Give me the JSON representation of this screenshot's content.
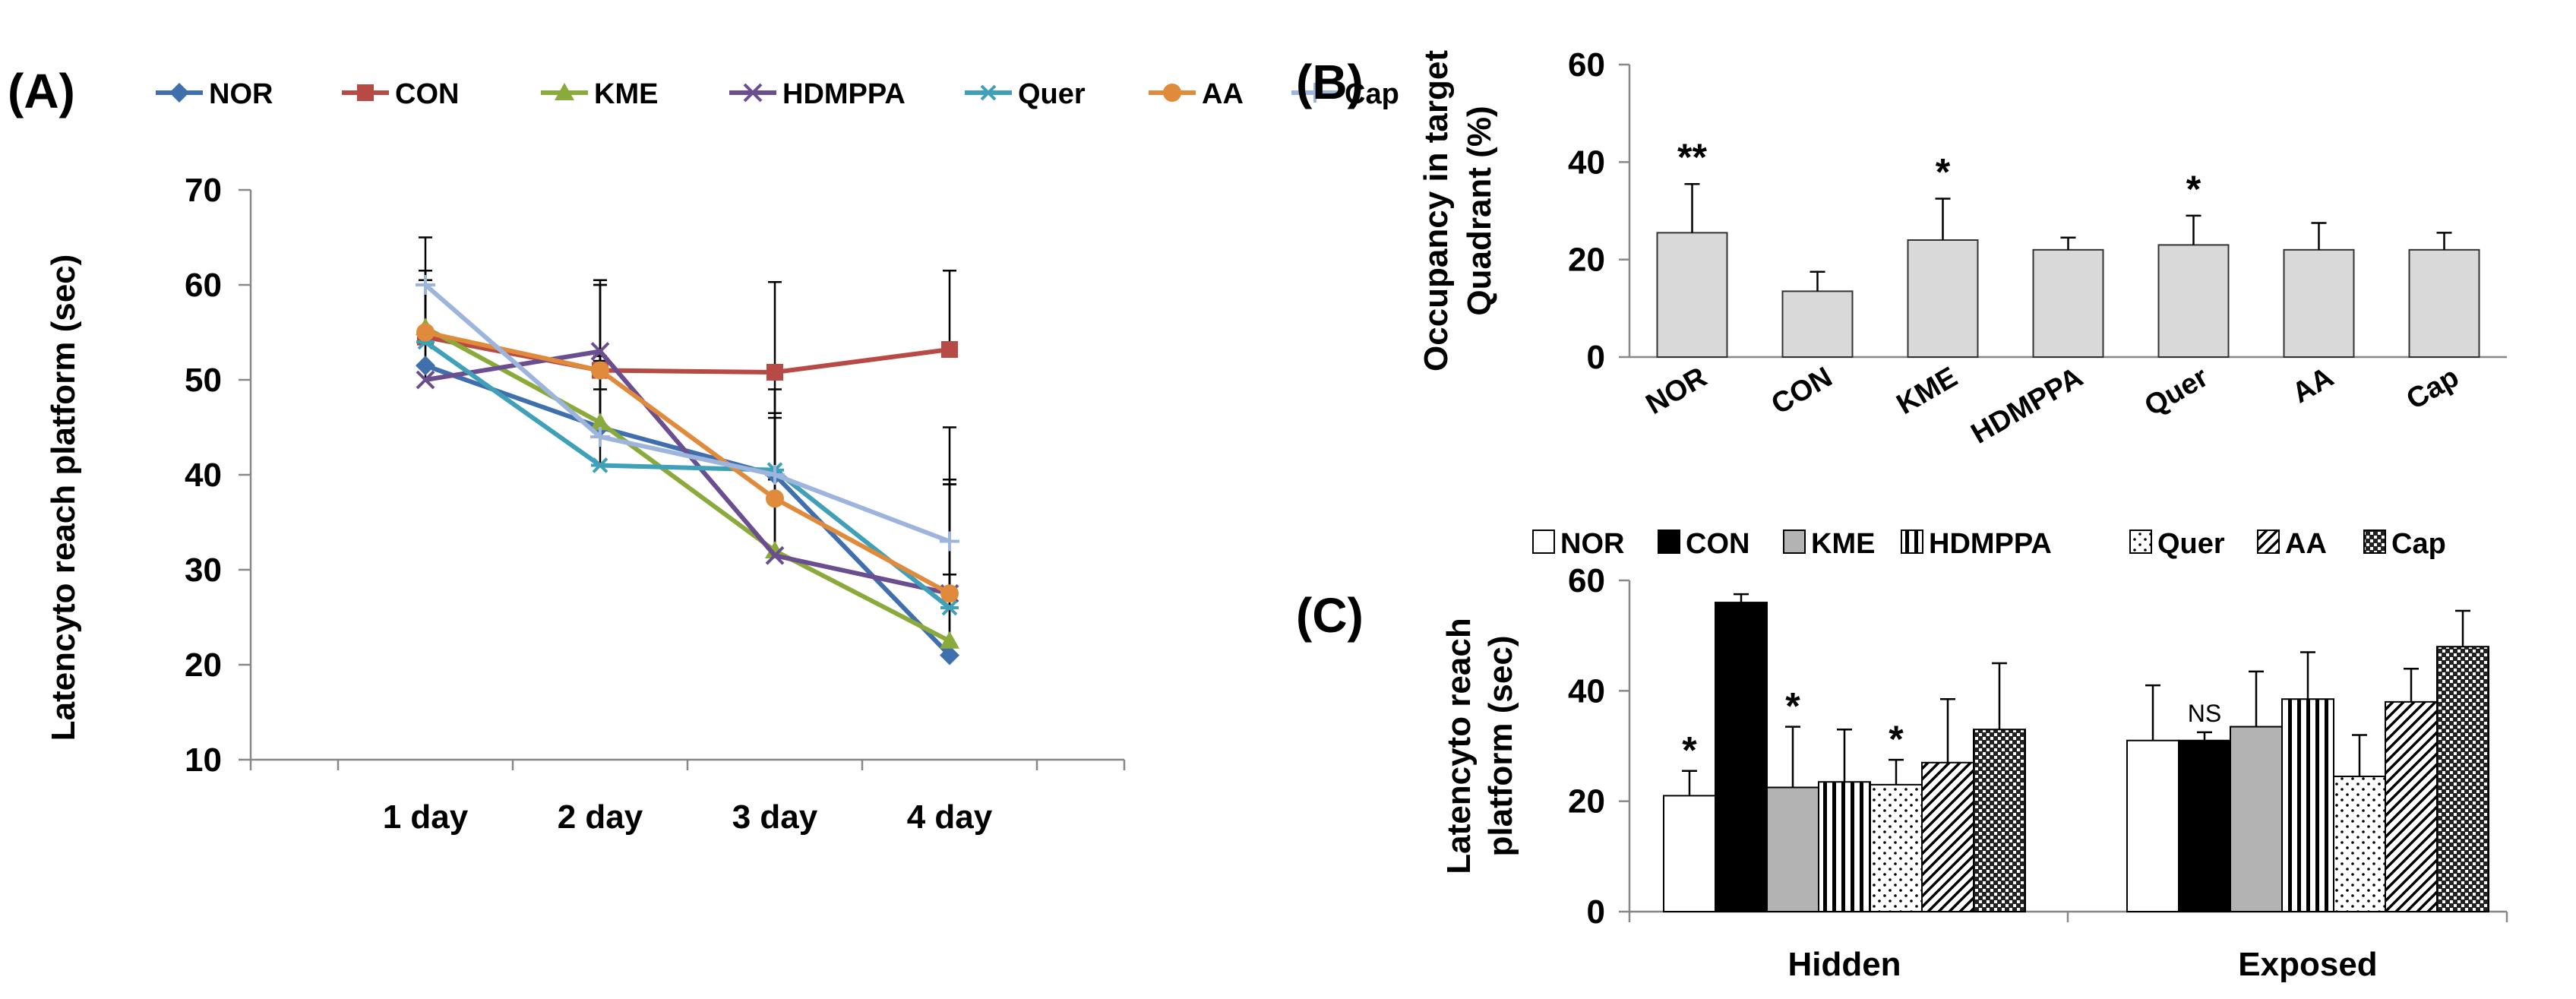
{
  "chart_data": [
    {
      "panel": "(A)",
      "type": "line",
      "categories": [
        "1 day",
        "2 day",
        "3 day",
        "4 day"
      ],
      "ylabel": "Latencyto reach platform (sec)",
      "xlabel": "",
      "ylim": [
        10,
        70
      ],
      "yticks": [
        10,
        20,
        30,
        40,
        50,
        60,
        70
      ],
      "series": [
        {
          "name": "NOR",
          "color": "#3f6fad",
          "marker": "diamond",
          "values": [
            51.5,
            45,
            40,
            21
          ],
          "errors": [
            4,
            6,
            6,
            6
          ]
        },
        {
          "name": "CON",
          "color": "#b84a45",
          "marker": "square",
          "values": [
            54.5,
            51,
            50.8,
            53.2
          ],
          "errors": [
            6,
            9,
            9.5,
            8.3
          ]
        },
        {
          "name": "KME",
          "color": "#8aaa3c",
          "marker": "triangle",
          "values": [
            55.5,
            45.5,
            32,
            22.5
          ],
          "errors": [
            6,
            7,
            8,
            7
          ]
        },
        {
          "name": "HDMPPA",
          "color": "#6b4e8f",
          "marker": "x",
          "values": [
            50,
            53,
            31.5,
            27.5
          ],
          "errors": [
            5,
            7.5,
            8,
            12
          ]
        },
        {
          "name": "Quer",
          "color": "#3fa0b8",
          "marker": "asterisk",
          "values": [
            54,
            41,
            40.5,
            26
          ],
          "errors": [
            6,
            8,
            10,
            13
          ]
        },
        {
          "name": "AA",
          "color": "#e08a3c",
          "marker": "circle",
          "values": [
            55,
            51,
            37.5,
            27.5
          ],
          "errors": [
            6.5,
            9,
            9,
            11.5
          ]
        },
        {
          "name": "Cap",
          "color": "#9db5dc",
          "marker": "plus",
          "values": [
            60,
            44,
            40,
            33
          ],
          "errors": [
            5,
            8,
            9,
            12
          ]
        }
      ]
    },
    {
      "panel": "(B)",
      "type": "bar",
      "categories": [
        "NOR",
        "CON",
        "KME",
        "HDMPPA",
        "Quer",
        "AA",
        "Cap"
      ],
      "values": [
        25.5,
        13.5,
        24,
        22,
        23,
        22,
        22
      ],
      "errors": [
        10,
        4,
        8.5,
        2.5,
        6,
        5.5,
        3.5
      ],
      "significance": [
        "**",
        "",
        "*",
        "",
        "*",
        "",
        ""
      ],
      "ylabel_line1": "Occupancy in target",
      "ylabel_line2": "Quadrant (%)",
      "xlabel": "",
      "ylim": [
        0,
        60
      ],
      "yticks": [
        0,
        20,
        40,
        60
      ],
      "bar_color": "#d9d9d9"
    },
    {
      "panel": "(C)",
      "type": "bar",
      "categories": [
        "Hidden",
        "Exposed"
      ],
      "ylabel_line1": "Latencyto reach",
      "ylabel_line2": "platform (sec)",
      "xlabel": "",
      "ylim": [
        0,
        60
      ],
      "yticks": [
        0,
        20,
        40,
        60
      ],
      "ns_label": "NS",
      "series": [
        {
          "name": "NOR",
          "pattern": "white",
          "values": [
            21,
            31
          ],
          "errors": [
            4.5,
            10
          ],
          "significance": [
            "*",
            ""
          ]
        },
        {
          "name": "CON",
          "pattern": "black",
          "values": [
            56,
            31
          ],
          "errors": [
            1.5,
            1.5
          ],
          "significance": [
            "",
            "NS"
          ]
        },
        {
          "name": "KME",
          "pattern": "gray",
          "values": [
            22.5,
            33.5
          ],
          "errors": [
            11,
            10
          ],
          "significance": [
            "*",
            ""
          ]
        },
        {
          "name": "HDMPPA",
          "pattern": "vlines",
          "values": [
            23.5,
            38.5
          ],
          "errors": [
            9.5,
            8.5
          ],
          "significance": [
            "",
            ""
          ]
        },
        {
          "name": "Quer",
          "pattern": "dots",
          "values": [
            23,
            24.5
          ],
          "errors": [
            4.5,
            7.5
          ],
          "significance": [
            "*",
            ""
          ]
        },
        {
          "name": "AA",
          "pattern": "diag",
          "values": [
            27,
            38
          ],
          "errors": [
            11.5,
            6
          ],
          "significance": [
            "",
            ""
          ]
        },
        {
          "name": "Cap",
          "pattern": "check",
          "values": [
            33,
            48
          ],
          "errors": [
            12,
            6.5
          ],
          "significance": [
            "",
            ""
          ]
        }
      ]
    }
  ]
}
